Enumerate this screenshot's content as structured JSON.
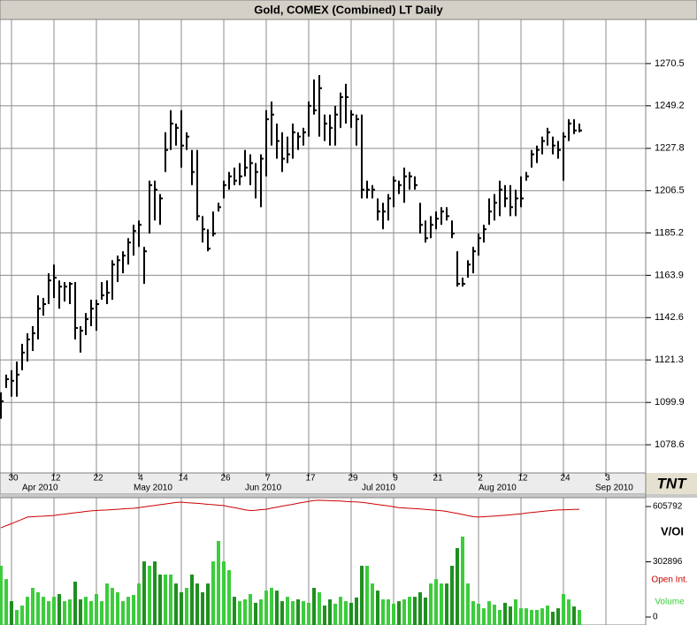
{
  "chart_data": [
    {
      "type": "ohlc",
      "title": "Gold, COMEX (Combined) LT Daily",
      "logo": "TNT",
      "color": "#000000",
      "grid": true,
      "categories": [
        null,
        null,
        "30",
        null,
        null,
        null,
        null,
        null,
        null,
        null,
        "12",
        null,
        null,
        null,
        null,
        null,
        null,
        null,
        "22",
        null,
        null,
        null,
        null,
        null,
        null,
        null,
        "4",
        null,
        null,
        null,
        null,
        null,
        null,
        null,
        "14",
        null,
        null,
        null,
        null,
        null,
        null,
        null,
        "26",
        null,
        null,
        null,
        null,
        null,
        null,
        null,
        "7",
        null,
        null,
        null,
        null,
        null,
        null,
        null,
        "17",
        null,
        null,
        null,
        null,
        null,
        null,
        null,
        "29",
        null,
        null,
        null,
        null,
        null,
        null,
        null,
        "9",
        null,
        null,
        null,
        null,
        null,
        null,
        null,
        "21",
        null,
        null,
        null,
        null,
        null,
        null,
        null,
        "2",
        null,
        null,
        null,
        null,
        null,
        null,
        null,
        "12",
        null,
        null,
        null,
        null,
        null,
        null,
        null,
        "24",
        null,
        null,
        null,
        null,
        null,
        null,
        null,
        "3"
      ],
      "month_labels": [
        null,
        null,
        null,
        null,
        "Apr 2010",
        null,
        null,
        null,
        null,
        null,
        null,
        null,
        null,
        null,
        null,
        null,
        null,
        null,
        null,
        null,
        null,
        null,
        null,
        null,
        null,
        "May 2010",
        null,
        null,
        null,
        null,
        null,
        null,
        null,
        null,
        null,
        null,
        null,
        null,
        null,
        null,
        null,
        null,
        null,
        null,
        null,
        null,
        "Jun 2010",
        null,
        null,
        null,
        null,
        null,
        null,
        null,
        null,
        null,
        null,
        null,
        null,
        null,
        null,
        null,
        null,
        null,
        null,
        null,
        null,
        null,
        "Jul 2010",
        null,
        null,
        null,
        null,
        null,
        null,
        null,
        null,
        null,
        null,
        null,
        null,
        null,
        null,
        null,
        null,
        null,
        null,
        null,
        null,
        null,
        "Aug 2010",
        null,
        null,
        null,
        null,
        null,
        null,
        null,
        null,
        null,
        null,
        null,
        null,
        null,
        null,
        null,
        null,
        null,
        null,
        null,
        null,
        null,
        "Sep 2010",
        null,
        null
      ],
      "high": [
        1105.0,
        1113.9,
        1116.1,
        1120.5,
        1129.4,
        1134.7,
        1138.3,
        1153.8,
        1152.5,
        1164.9,
        1169.3,
        1161.3,
        1160.5,
        1160.5,
        1160.5,
        1138.3,
        1144.9,
        1151.6,
        1151.6,
        1160.5,
        1161.3,
        1171.5,
        1173.8,
        1176.0,
        1182.6,
        1189.3,
        1191.5,
        1178.2,
        1211.5,
        1211.5,
        1204.8,
        1235.9,
        1247.0,
        1240.3,
        1247.0,
        1235.9,
        1227.0,
        1227.0,
        1193.7,
        1187.1,
        1196.0,
        1200.4,
        1211.5,
        1215.9,
        1218.1,
        1220.4,
        1227.0,
        1224.8,
        1220.4,
        1224.8,
        1247.0,
        1251.4,
        1240.3,
        1235.9,
        1233.7,
        1240.3,
        1235.9,
        1238.1,
        1251.4,
        1262.5,
        1264.7,
        1244.8,
        1244.8,
        1249.2,
        1255.9,
        1260.3,
        1247.0,
        1244.8,
        1244.8,
        1211.5,
        1209.3,
        1202.6,
        1200.4,
        1204.8,
        1213.7,
        1211.5,
        1218.1,
        1215.9,
        1213.7,
        1200.4,
        1191.5,
        1193.7,
        1196.0,
        1198.2,
        1198.2,
        1191.5,
        1176.0,
        1162.7,
        1171.5,
        1178.2,
        1184.9,
        1189.3,
        1202.6,
        1204.8,
        1211.5,
        1209.3,
        1209.3,
        1207.0,
        1213.7,
        1215.9,
        1227.0,
        1229.2,
        1233.7,
        1238.1,
        1233.7,
        1231.5,
        1235.9,
        1242.5,
        1242.5,
        1240.3,
        null,
        null,
        null,
        null,
        null
      ],
      "low": [
        1091.7,
        1107.2,
        1102.8,
        1102.8,
        1116.1,
        1120.5,
        1125.8,
        1131.6,
        1143.6,
        1149.4,
        1152.5,
        1147.1,
        1150.7,
        1149.4,
        1131.6,
        1125.0,
        1133.8,
        1138.3,
        1136.0,
        1151.6,
        1149.4,
        1151.6,
        1160.5,
        1164.9,
        1169.3,
        1173.8,
        1178.2,
        1159.6,
        1184.9,
        1191.5,
        1189.3,
        1215.9,
        1227.0,
        1229.2,
        1218.1,
        1227.0,
        1209.3,
        1191.5,
        1180.4,
        1176.0,
        1183.5,
        1196.0,
        1202.6,
        1207.0,
        1209.3,
        1209.3,
        1213.7,
        1209.3,
        1202.6,
        1198.2,
        1213.7,
        1229.2,
        1222.6,
        1215.9,
        1220.4,
        1222.6,
        1227.0,
        1229.2,
        1233.7,
        1244.8,
        1233.7,
        1231.5,
        1229.2,
        1229.2,
        1238.1,
        1240.3,
        1238.1,
        1229.2,
        1202.6,
        1202.6,
        1202.6,
        1191.5,
        1187.1,
        1191.5,
        1198.2,
        1204.8,
        1200.4,
        1207.0,
        1207.0,
        1184.9,
        1180.4,
        1182.6,
        1187.1,
        1189.3,
        1191.5,
        1182.6,
        1158.2,
        1158.2,
        1162.7,
        1164.9,
        1173.8,
        1180.4,
        1189.3,
        1191.5,
        1193.7,
        1198.2,
        1193.7,
        1193.7,
        1198.2,
        1211.5,
        1218.1,
        1220.4,
        1224.8,
        1229.2,
        1224.8,
        1222.6,
        1211.5,
        1231.5,
        1235.0,
        1235.9,
        null,
        null,
        null,
        null,
        null
      ],
      "close": [
        1100.5,
        1111.6,
        1110.8,
        1113.9,
        1125.0,
        1131.6,
        1134.7,
        1147.1,
        1149.4,
        1161.3,
        1162.7,
        1158.2,
        1158.2,
        1159.6,
        1137.4,
        1136.0,
        1141.8,
        1147.1,
        1149.4,
        1153.8,
        1155.1,
        1169.3,
        1171.5,
        1173.8,
        1180.4,
        1186.2,
        1189.3,
        1176.0,
        1209.3,
        1207.0,
        1202.6,
        1227.0,
        1240.3,
        1238.1,
        1229.2,
        1233.7,
        1215.9,
        1193.7,
        1187.1,
        1177.3,
        1184.9,
        1198.2,
        1209.3,
        1213.7,
        1211.5,
        1213.7,
        1218.1,
        1220.4,
        1215.9,
        1222.6,
        1242.5,
        1244.8,
        1231.5,
        1222.6,
        1224.8,
        1235.9,
        1233.7,
        1235.9,
        1249.2,
        1247.0,
        1258.1,
        1240.3,
        1238.1,
        1244.8,
        1253.6,
        1253.6,
        1244.8,
        1242.5,
        1207.0,
        1207.0,
        1207.0,
        1196.0,
        1196.0,
        1202.6,
        1211.5,
        1209.3,
        1213.7,
        1213.7,
        1209.3,
        1189.3,
        1182.6,
        1189.3,
        1192.4,
        1196.0,
        1193.7,
        1184.9,
        1159.6,
        1159.6,
        1169.3,
        1176.0,
        1182.6,
        1187.1,
        1196.0,
        1200.4,
        1207.0,
        1202.6,
        1198.2,
        1202.6,
        1202.6,
        1213.7,
        1224.8,
        1227.0,
        1231.5,
        1235.9,
        1229.2,
        1227.0,
        1233.7,
        1240.3,
        1236.8,
        1236.8,
        null,
        null,
        null,
        null,
        null
      ],
      "ylim": [
        1064.4,
        1292.7
      ],
      "yticks": [
        1078.6,
        1099.9,
        1121.3,
        1142.6,
        1163.9,
        1185.2,
        1206.5,
        1227.8,
        1249.2,
        1270.5
      ]
    },
    {
      "type": "volume-oi",
      "label": "V/OI",
      "down_color": "#1f8f1f",
      "ylim": [
        -43600,
        654250
      ],
      "yticks": [
        0,
        302896,
        605792
      ],
      "series": [
        {
          "name": "Open Int.",
          "color": "#cc0000",
          "values": [
            489000,
            501000,
            512000,
            524000,
            536000,
            548000,
            550000,
            552000,
            553000,
            555000,
            557000,
            561000,
            564000,
            568000,
            572000,
            575000,
            579000,
            582000,
            584000,
            586000,
            587000,
            589000,
            591000,
            593000,
            595000,
            596000,
            600000,
            604000,
            608000,
            612000,
            616000,
            620000,
            624000,
            628000,
            630000,
            627000,
            625000,
            623000,
            621000,
            618000,
            616000,
            613000,
            611000,
            605000,
            600000,
            594000,
            588000,
            584000,
            585000,
            589000,
            591000,
            597000,
            602000,
            608000,
            613000,
            618000,
            624000,
            629000,
            634000,
            639000,
            640000,
            639000,
            638000,
            637000,
            636000,
            634000,
            632000,
            631000,
            629000,
            625000,
            621000,
            617000,
            613000,
            609000,
            605000,
            600000,
            598000,
            596000,
            594000,
            592000,
            590000,
            588000,
            585000,
            583000,
            579000,
            573000,
            568000,
            562000,
            556000,
            550000,
            548000,
            550000,
            552000,
            554000,
            556000,
            558000,
            560000,
            563000,
            566000,
            570000,
            573000,
            576000,
            579000,
            582000,
            585000,
            587000,
            588000,
            589000,
            590000,
            591000,
            null,
            null,
            null,
            null,
            null
          ]
        },
        {
          "name": "Volume",
          "color": "#3ccc3c",
          "values": [
            281000,
            208000,
            87000,
            39000,
            63000,
            111000,
            160000,
            136000,
            111000,
            87000,
            111000,
            126000,
            87000,
            97000,
            194000,
            97000,
            111000,
            87000,
            126000,
            87000,
            184000,
            160000,
            136000,
            87000,
            111000,
            121000,
            184000,
            305000,
            281000,
            305000,
            233000,
            233000,
            233000,
            184000,
            136000,
            160000,
            233000,
            184000,
            136000,
            184000,
            305000,
            417000,
            305000,
            257000,
            111000,
            87000,
            97000,
            126000,
            78000,
            97000,
            145000,
            160000,
            145000,
            87000,
            111000,
            87000,
            97000,
            87000,
            78000,
            160000,
            136000,
            63000,
            97000,
            73000,
            111000,
            87000,
            78000,
            107000,
            281000,
            281000,
            184000,
            145000,
            97000,
            97000,
            73000,
            87000,
            97000,
            111000,
            111000,
            136000,
            107000,
            184000,
            208000,
            184000,
            184000,
            281000,
            378000,
            441000,
            184000,
            87000,
            73000,
            48000,
            87000,
            68000,
            39000,
            78000,
            58000,
            97000,
            48000,
            48000,
            39000,
            39000,
            48000,
            63000,
            29000,
            48000,
            126000,
            97000,
            58000,
            39000,
            null,
            null,
            null,
            null,
            null
          ]
        }
      ]
    }
  ]
}
